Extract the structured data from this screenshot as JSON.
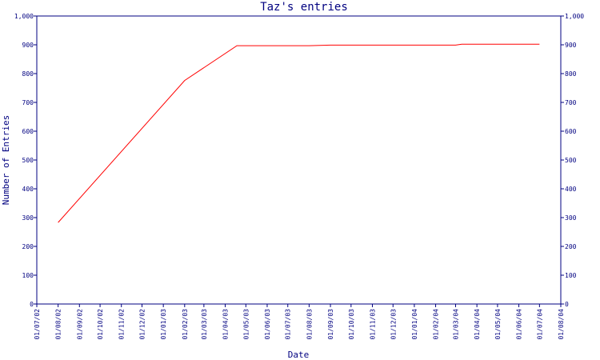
{
  "colors": {
    "axis": "#000080",
    "series": "#ff0000",
    "background": "#ffffff"
  },
  "chart_data": {
    "type": "line",
    "title": "Taz's entries",
    "xlabel": "Date",
    "ylabel": "Number of Entries",
    "grid": false,
    "legend": "none",
    "ylim": [
      0,
      1000
    ],
    "y_ticks": [
      "0",
      "100",
      "200",
      "300",
      "400",
      "500",
      "600",
      "700",
      "800",
      "900",
      "1,000"
    ],
    "y_tick_values": [
      0,
      100,
      200,
      300,
      400,
      500,
      600,
      700,
      800,
      900,
      1000
    ],
    "x_ticks": [
      "01/07/02",
      "01/08/02",
      "01/09/02",
      "01/10/02",
      "01/11/02",
      "01/12/02",
      "01/01/03",
      "01/02/03",
      "01/03/03",
      "01/04/03",
      "01/05/03",
      "01/06/03",
      "01/07/03",
      "01/08/03",
      "01/09/03",
      "01/10/03",
      "01/11/03",
      "01/12/03",
      "01/01/04",
      "01/02/04",
      "01/03/04",
      "01/04/04",
      "01/05/04",
      "01/06/04",
      "01/07/04",
      "01/08/04"
    ],
    "xlim": [
      "01/07/02",
      "01/08/04"
    ],
    "series": [
      {
        "color": "#ff0000",
        "points": [
          {
            "x": "01/08/02",
            "y": 283
          },
          {
            "x": "01/02/03",
            "y": 776
          },
          {
            "x": "18/04/03",
            "y": 897
          },
          {
            "x": "01/08/03",
            "y": 897
          },
          {
            "x": "01/09/03",
            "y": 899
          },
          {
            "x": "01/03/04",
            "y": 899
          },
          {
            "x": "10/03/04",
            "y": 902
          },
          {
            "x": "01/07/04",
            "y": 902
          }
        ]
      }
    ]
  }
}
